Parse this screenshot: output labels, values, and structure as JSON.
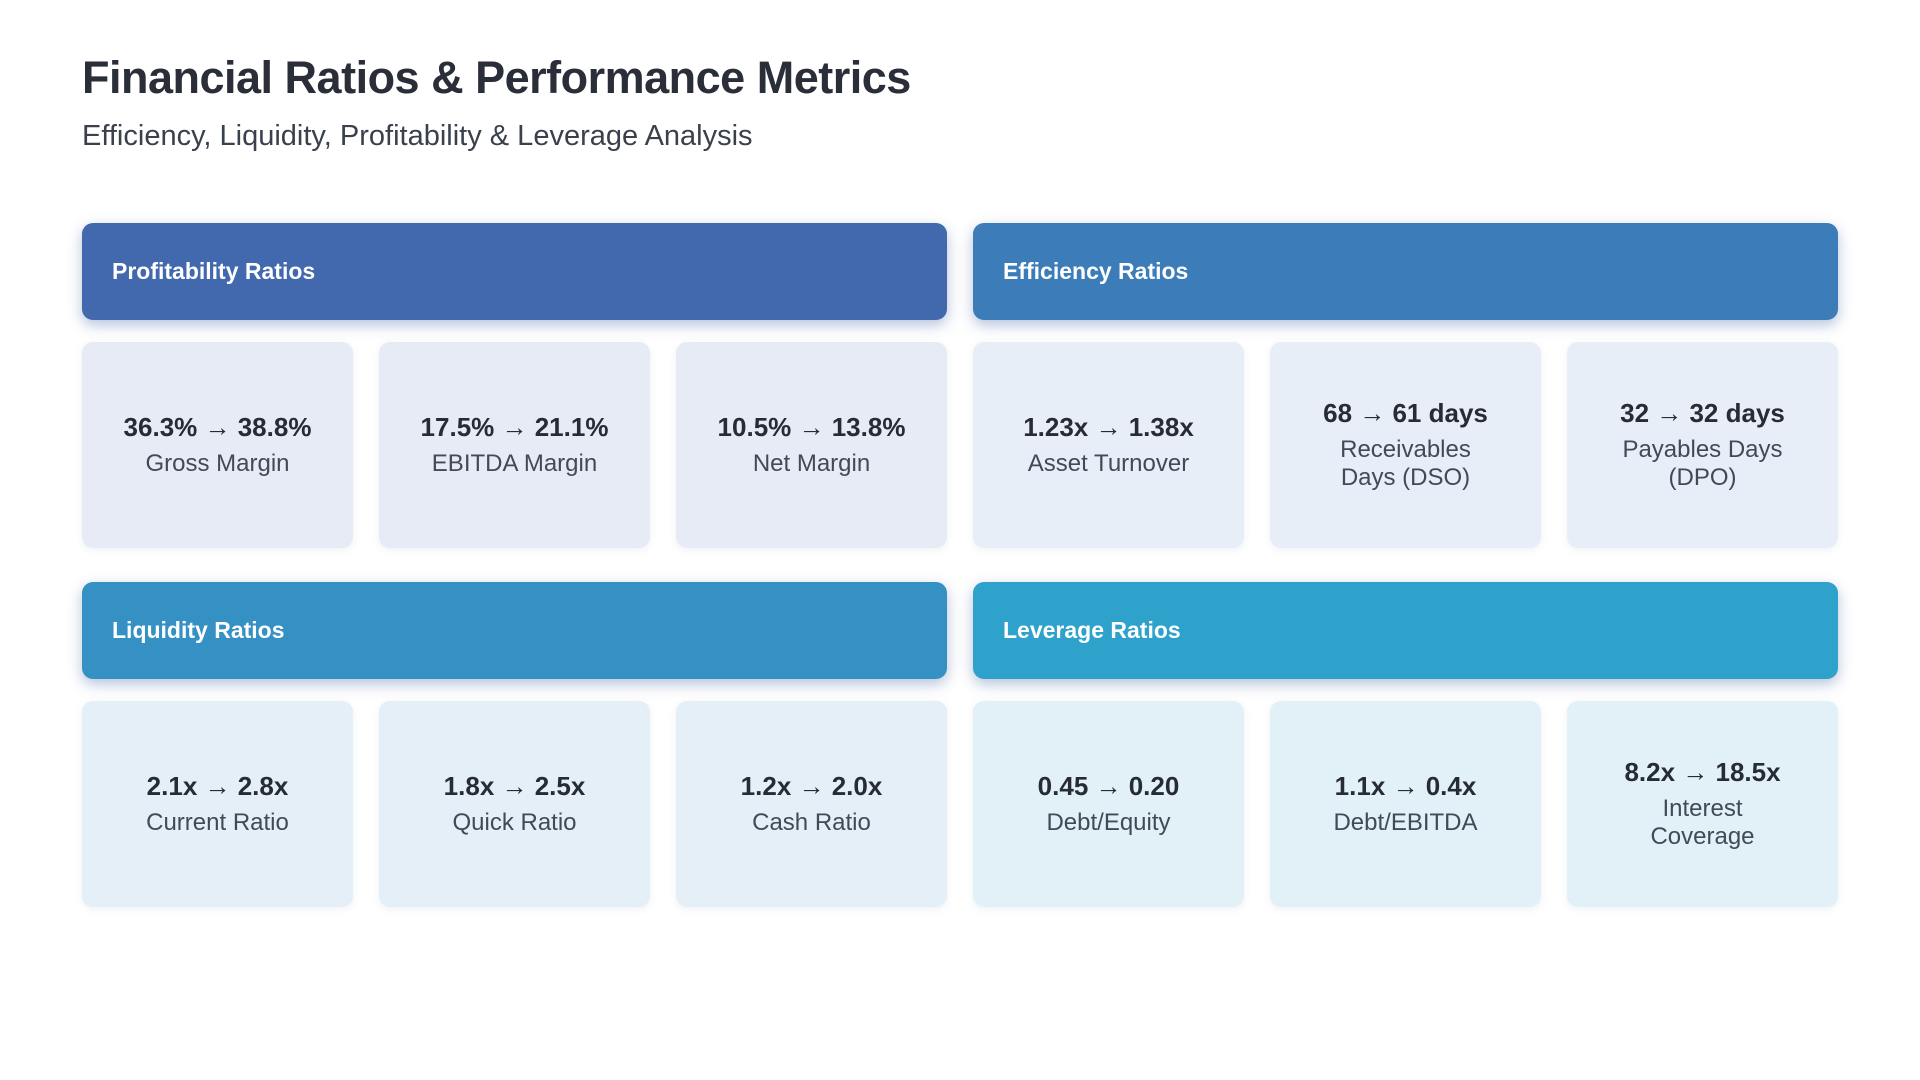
{
  "page": {
    "title": "Financial Ratios & Performance Metrics",
    "subtitle": "Efficiency, Liquidity, Profitability & Leverage Analysis"
  },
  "sections": [
    {
      "id": "profitability",
      "title": "Profitability Ratios",
      "header_color": "#4268ad",
      "card_bg": "#e7ebf5",
      "metrics": [
        {
          "value": "36.3% → 38.8%",
          "label": "Gross Margin"
        },
        {
          "value": "17.5% → 21.1%",
          "label": "EBITDA Margin"
        },
        {
          "value": "10.5% → 13.8%",
          "label": "Net Margin"
        }
      ]
    },
    {
      "id": "efficiency",
      "title": "Efficiency Ratios",
      "header_color": "#3c7cb9",
      "card_bg": "#e8eef7",
      "metrics": [
        {
          "value": "1.23x → 1.38x",
          "label": "Asset Turnover"
        },
        {
          "value": "68 → 61 days",
          "label": "Receivables Days (DSO)"
        },
        {
          "value": "32 → 32 days",
          "label": "Payables Days (DPO)"
        }
      ]
    },
    {
      "id": "liquidity",
      "title": "Liquidity Ratios",
      "header_color": "#3590c3",
      "card_bg": "#e4eff8",
      "metrics": [
        {
          "value": "2.1x → 2.8x",
          "label": "Current Ratio"
        },
        {
          "value": "1.8x → 2.5x",
          "label": "Quick Ratio"
        },
        {
          "value": "1.2x → 2.0x",
          "label": "Cash Ratio"
        }
      ]
    },
    {
      "id": "leverage",
      "title": "Leverage Ratios",
      "header_color": "#2fa2cc",
      "card_bg": "#e2f1f8",
      "metrics": [
        {
          "value": "0.45 → 0.20",
          "label": "Debt/Equity"
        },
        {
          "value": "1.1x → 0.4x",
          "label": "Debt/EBITDA"
        },
        {
          "value": "8.2x → 18.5x",
          "label": "Interest Coverage"
        }
      ]
    }
  ],
  "chart_data": {
    "type": "table",
    "title": "Financial Ratios & Performance Metrics",
    "subtitle": "Efficiency, Liquidity, Profitability & Leverage Analysis",
    "groups": [
      {
        "name": "Profitability Ratios",
        "metrics": [
          {
            "label": "Gross Margin",
            "from": 36.3,
            "to": 38.8,
            "unit": "%"
          },
          {
            "label": "EBITDA Margin",
            "from": 17.5,
            "to": 21.1,
            "unit": "%"
          },
          {
            "label": "Net Margin",
            "from": 10.5,
            "to": 13.8,
            "unit": "%"
          }
        ]
      },
      {
        "name": "Efficiency Ratios",
        "metrics": [
          {
            "label": "Asset Turnover",
            "from": 1.23,
            "to": 1.38,
            "unit": "x"
          },
          {
            "label": "Receivables Days (DSO)",
            "from": 68,
            "to": 61,
            "unit": "days"
          },
          {
            "label": "Payables Days (DPO)",
            "from": 32,
            "to": 32,
            "unit": "days"
          }
        ]
      },
      {
        "name": "Liquidity Ratios",
        "metrics": [
          {
            "label": "Current Ratio",
            "from": 2.1,
            "to": 2.8,
            "unit": "x"
          },
          {
            "label": "Quick Ratio",
            "from": 1.8,
            "to": 2.5,
            "unit": "x"
          },
          {
            "label": "Cash Ratio",
            "from": 1.2,
            "to": 2.0,
            "unit": "x"
          }
        ]
      },
      {
        "name": "Leverage Ratios",
        "metrics": [
          {
            "label": "Debt/Equity",
            "from": 0.45,
            "to": 0.2,
            "unit": ""
          },
          {
            "label": "Debt/EBITDA",
            "from": 1.1,
            "to": 0.4,
            "unit": "x"
          },
          {
            "label": "Interest Coverage",
            "from": 8.2,
            "to": 18.5,
            "unit": "x"
          }
        ]
      }
    ]
  }
}
